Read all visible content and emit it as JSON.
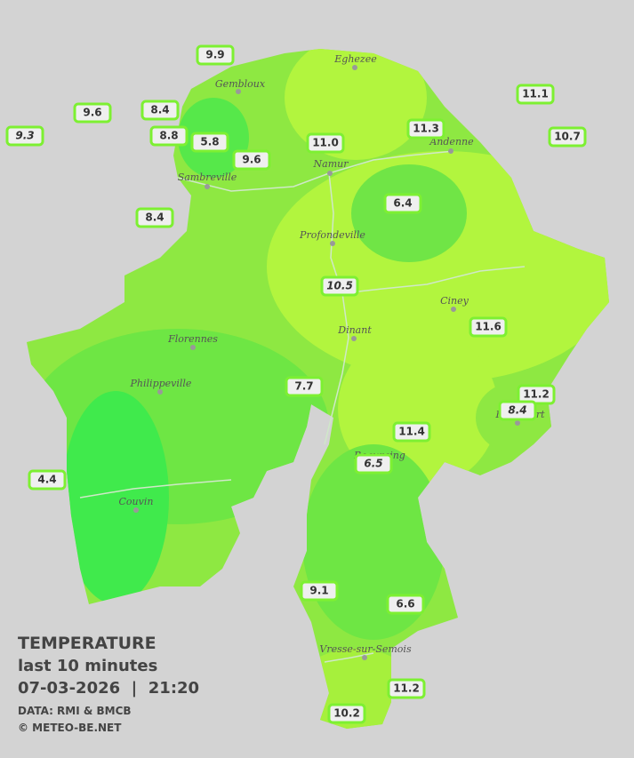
{
  "towns": [
    {
      "name": "Eghezee"
    },
    {
      "name": "Gembloux"
    },
    {
      "name": "Andenne"
    },
    {
      "name": "Namur"
    },
    {
      "name": "Sambreville"
    },
    {
      "name": "Profondeville"
    },
    {
      "name": "Ciney"
    },
    {
      "name": "Dinant"
    },
    {
      "name": "Florennes"
    },
    {
      "name": "Philippeville"
    },
    {
      "name": "Couvin"
    },
    {
      "name": "Vresse-sur-Semois"
    },
    {
      "name": "Beauraing"
    },
    {
      "name": "Rochefort"
    }
  ],
  "stations": [
    {
      "value": "9.9"
    },
    {
      "value": "9.6"
    },
    {
      "value": "8.4"
    },
    {
      "value": "9.3"
    },
    {
      "value": "8.8"
    },
    {
      "value": "5.8"
    },
    {
      "value": "9.6"
    },
    {
      "value": "11.0"
    },
    {
      "value": "11.3"
    },
    {
      "value": "11.1"
    },
    {
      "value": "10.7"
    },
    {
      "value": "8.4"
    },
    {
      "value": "6.4"
    },
    {
      "value": "10.5"
    },
    {
      "value": "11.6"
    },
    {
      "value": "7.7"
    },
    {
      "value": "11.2"
    },
    {
      "value": "8.4"
    },
    {
      "value": "11.4"
    },
    {
      "value": "6.5"
    },
    {
      "value": "4.4"
    },
    {
      "value": "9.1"
    },
    {
      "value": "6.6"
    },
    {
      "value": "11.2"
    },
    {
      "value": "10.2"
    }
  ],
  "caption": {
    "title": "TEMPERATURE",
    "period": "last 10 minutes",
    "datetime": "07-03-2026  |  21:20",
    "source": "DATA: RMI & BMCB",
    "copyright": "© METEO-BE.NET"
  }
}
